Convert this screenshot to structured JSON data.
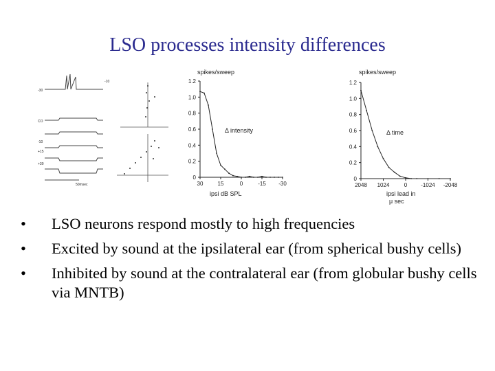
{
  "slide": {
    "title": "LSO processes intensity differences",
    "bullets": [
      "LSO neurons respond mostly to high frequencies",
      "Excited by sound at the ipsilateral ear (from spherical bushy cells)",
      "Inhibited by sound at the contralateral ear (from globular bushy cells via MNTB)"
    ],
    "bullet_marker": "•"
  },
  "chart_data": [
    {
      "type": "line",
      "title": "",
      "ylabel": "spikes/sweep",
      "xlabel": "ipsi dB SPL",
      "annotation": "Δ intensity",
      "x_ticks": [
        "30",
        "15",
        "0",
        "-15",
        "-30"
      ],
      "y_ticks": [
        "0",
        "0.2",
        "0.4",
        "0.6",
        "0.8",
        "1.0",
        "1.2"
      ],
      "xlim": [
        30,
        -30
      ],
      "ylim": [
        0,
        1.2
      ],
      "x": [
        30,
        27,
        24,
        21,
        18,
        15,
        12,
        9,
        6,
        3,
        0,
        -3,
        -6,
        -9,
        -12,
        -15,
        -18,
        -21,
        -24,
        -27,
        -30
      ],
      "y": [
        1.07,
        1.05,
        0.9,
        0.6,
        0.3,
        0.15,
        0.1,
        0.05,
        0.02,
        0.01,
        0,
        0,
        0.01,
        0,
        0,
        0.01,
        0,
        0,
        0,
        0,
        0
      ]
    },
    {
      "type": "line",
      "title": "",
      "ylabel": "spikes/sweep",
      "xlabel": "ipsi lead in",
      "xlabel2": "μ sec",
      "annotation": "Δ time",
      "x_ticks": [
        "2048",
        "1024",
        "0",
        "-1024",
        "-2048"
      ],
      "y_ticks": [
        "0",
        "0.2",
        "0.4",
        "0.6",
        "0.8",
        "1.0",
        "1.2"
      ],
      "xlim": [
        2048,
        -2048
      ],
      "ylim": [
        0,
        1.2
      ],
      "x": [
        2048,
        1792,
        1536,
        1280,
        1024,
        768,
        512,
        256,
        0,
        -256,
        -512,
        -1024,
        -1536,
        -2048
      ],
      "y": [
        1.1,
        0.85,
        0.6,
        0.4,
        0.25,
        0.14,
        0.08,
        0.03,
        0.01,
        0,
        0,
        0,
        0,
        0
      ]
    }
  ],
  "left_panel": {
    "traces_labels": [
      "-30",
      "-10",
      "CO",
      "-10",
      "+15",
      "+30"
    ],
    "scale_label": "50msec"
  }
}
